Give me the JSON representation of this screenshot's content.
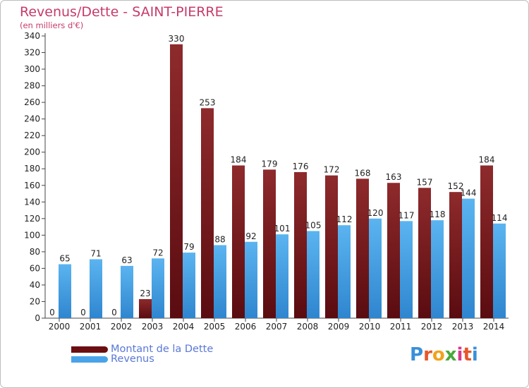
{
  "header": {
    "title": "Revenus/Dette - SAINT-PIERRE",
    "subtitle": "(en milliers d'€)"
  },
  "colors": {
    "dette": "#7a1a1e",
    "revenus": "#4aa3e8",
    "title": "#c73a6b",
    "legend_text": "#5a78d6"
  },
  "chart_data": {
    "type": "bar",
    "title": "Revenus/Dette - SAINT-PIERRE",
    "ylabel": "(en milliers d'€)",
    "xlabel": "",
    "categories": [
      "2000",
      "2001",
      "2002",
      "2003",
      "2004",
      "2005",
      "2006",
      "2007",
      "2008",
      "2009",
      "2010",
      "2011",
      "2012",
      "2013",
      "2014"
    ],
    "series": [
      {
        "name": "Montant de la Dette",
        "values": [
          0,
          0,
          0,
          23,
          330,
          253,
          184,
          179,
          176,
          172,
          168,
          163,
          157,
          152,
          184
        ]
      },
      {
        "name": "Revenus",
        "values": [
          65,
          71,
          63,
          72,
          79,
          88,
          92,
          101,
          105,
          112,
          120,
          117,
          118,
          144,
          114
        ]
      }
    ],
    "ylim": [
      0,
      340
    ],
    "yticks": [
      0,
      20,
      40,
      60,
      80,
      100,
      120,
      140,
      160,
      180,
      200,
      220,
      240,
      260,
      280,
      300,
      320,
      340
    ],
    "grid": false,
    "legend": "bottom-left"
  },
  "legend": {
    "items": [
      {
        "label": "Montant de la Dette"
      },
      {
        "label": "Revenus"
      }
    ]
  },
  "logo": {
    "letters": [
      "P",
      "r",
      "o",
      "x",
      "i",
      "t",
      "i"
    ],
    "colors": [
      "#3a8fd8",
      "#e8552a",
      "#f2a21c",
      "#4aa83a",
      "#d63a8a",
      "#e8552a",
      "#3a8fd8"
    ]
  }
}
